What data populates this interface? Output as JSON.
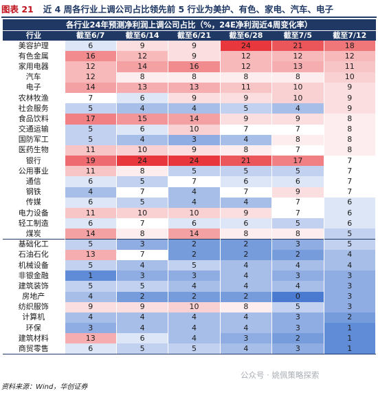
{
  "figure_label": "图表 21",
  "figure_title": "近 4 周各行业上调公司占比领先前 5 行业为美护、有色、家电、汽车、电子",
  "table": {
    "banner": "各行业24年预测净利润上调公司占比（%，24E净利润近4周变化率）",
    "columns": [
      "行业",
      "截至6/7",
      "截至6/14",
      "截至6/21",
      "截至6/28",
      "截至7/5",
      "截至7/12"
    ],
    "rows": [
      {
        "industry": "美容护理",
        "values": [
          6,
          9,
          9,
          24,
          21,
          18
        ]
      },
      {
        "industry": "有色金属",
        "values": [
          16,
          12,
          9,
          12,
          12,
          12
        ]
      },
      {
        "industry": "家用电器",
        "values": [
          12,
          14,
          16,
          12,
          13,
          11
        ]
      },
      {
        "industry": "汽车",
        "values": [
          12,
          8,
          8,
          8,
          8,
          10
        ]
      },
      {
        "industry": "电子",
        "values": [
          14,
          13,
          13,
          11,
          10,
          9
        ]
      },
      {
        "industry": "农林牧渔",
        "values": [
          7,
          6,
          9,
          9,
          10,
          9
        ]
      },
      {
        "industry": "社会服务",
        "values": [
          5,
          4,
          4,
          5,
          4,
          9
        ]
      },
      {
        "industry": "食品饮料",
        "values": [
          17,
          15,
          14,
          9,
          9,
          8
        ]
      },
      {
        "industry": "交通运输",
        "values": [
          5,
          6,
          10,
          7,
          7,
          8
        ]
      },
      {
        "industry": "国防军工",
        "values": [
          5,
          4,
          3,
          4,
          8,
          8
        ]
      },
      {
        "industry": "医药生物",
        "values": [
          11,
          10,
          9,
          8,
          7,
          8
        ]
      },
      {
        "industry": "银行",
        "values": [
          19,
          24,
          24,
          21,
          17,
          7
        ]
      },
      {
        "industry": "公用事业",
        "values": [
          11,
          8,
          5,
          5,
          5,
          7
        ]
      },
      {
        "industry": "通信",
        "values": [
          6,
          5,
          7,
          6,
          6,
          7
        ]
      },
      {
        "industry": "钢铁",
        "values": [
          4,
          7,
          4,
          7,
          9,
          7
        ]
      },
      {
        "industry": "传媒",
        "values": [
          6,
          5,
          4,
          4,
          7,
          6
        ]
      },
      {
        "industry": "电力设备",
        "values": [
          11,
          10,
          10,
          9,
          7,
          6
        ]
      },
      {
        "industry": "轻工制造",
        "values": [
          6,
          7,
          6,
          6,
          5,
          6
        ]
      },
      {
        "industry": "煤炭",
        "values": [
          14,
          8,
          14,
          8,
          8,
          5
        ]
      },
      {
        "industry": "基础化工",
        "values": [
          5,
          3,
          2,
          2,
          3,
          5
        ]
      },
      {
        "industry": "石油石化",
        "values": [
          13,
          7,
          2,
          2,
          2,
          4
        ]
      },
      {
        "industry": "机械设备",
        "values": [
          5,
          4,
          5,
          4,
          4,
          4
        ]
      },
      {
        "industry": "非银金融",
        "values": [
          1,
          3,
          3,
          4,
          3,
          3
        ]
      },
      {
        "industry": "建筑装饰",
        "values": [
          5,
          5,
          4,
          4,
          4,
          3
        ]
      },
      {
        "industry": "房地产",
        "values": [
          4,
          2,
          2,
          2,
          0,
          3
        ]
      },
      {
        "industry": "纺织服饰",
        "values": [
          9,
          9,
          10,
          8,
          5,
          3
        ]
      },
      {
        "industry": "计算机",
        "values": [
          4,
          4,
          4,
          4,
          3,
          2
        ]
      },
      {
        "industry": "环保",
        "values": [
          3,
          4,
          4,
          4,
          3,
          1
        ]
      },
      {
        "industry": "建筑材料",
        "values": [
          13,
          6,
          4,
          3,
          2,
          1
        ]
      },
      {
        "industry": "商贸零售",
        "values": [
          6,
          5,
          5,
          4,
          3,
          1
        ]
      }
    ]
  },
  "source": "资料来源：Wind，华创证券",
  "watermark": "公众号 · 姚佩策略探索",
  "colors": {
    "navy": "#1f3864",
    "red_label": "#c0111d",
    "high": "#e8383d",
    "mid": "#ffffff",
    "low": "#4a7bd0"
  }
}
